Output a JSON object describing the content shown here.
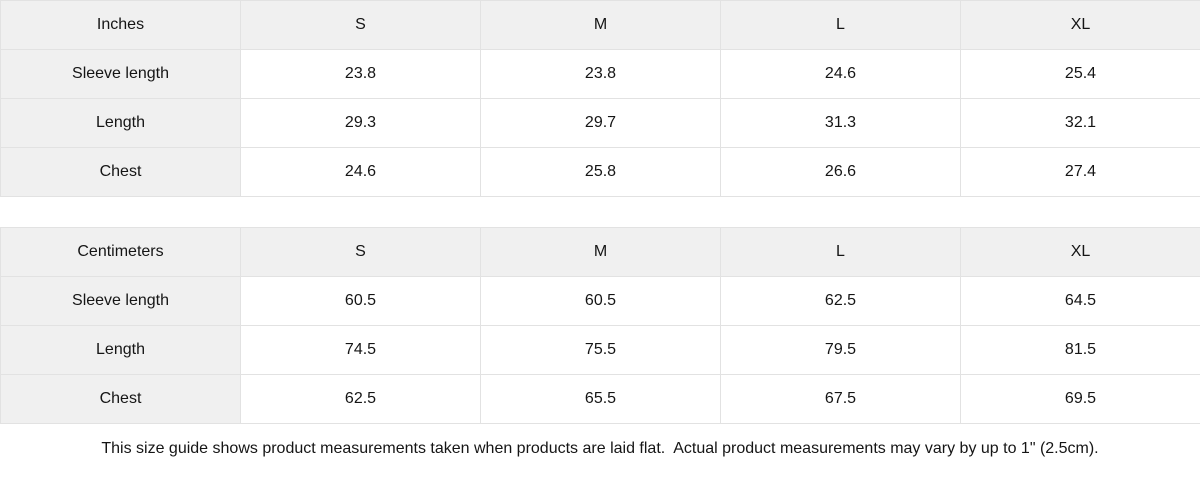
{
  "tables": [
    {
      "unit_label": "Inches",
      "sizes": [
        "S",
        "M",
        "L",
        "XL"
      ],
      "rows": [
        {
          "label": "Sleeve length",
          "values": [
            "23.8",
            "23.8",
            "24.6",
            "25.4"
          ]
        },
        {
          "label": "Length",
          "values": [
            "29.3",
            "29.7",
            "31.3",
            "32.1"
          ]
        },
        {
          "label": "Chest",
          "values": [
            "24.6",
            "25.8",
            "26.6",
            "27.4"
          ]
        }
      ]
    },
    {
      "unit_label": "Centimeters",
      "sizes": [
        "S",
        "M",
        "L",
        "XL"
      ],
      "rows": [
        {
          "label": "Sleeve length",
          "values": [
            "60.5",
            "60.5",
            "62.5",
            "64.5"
          ]
        },
        {
          "label": "Length",
          "values": [
            "74.5",
            "75.5",
            "79.5",
            "81.5"
          ]
        },
        {
          "label": "Chest",
          "values": [
            "62.5",
            "65.5",
            "67.5",
            "69.5"
          ]
        }
      ]
    }
  ],
  "footer": {
    "note": "This size guide shows product measurements taken when products are laid flat.  Actual product measurements may vary by up to 1\" (2.5cm)."
  },
  "colors": {
    "header_bg": "#f0f0f0",
    "cell_bg": "#ffffff",
    "border": "#e2e2e2",
    "text": "#151515"
  }
}
